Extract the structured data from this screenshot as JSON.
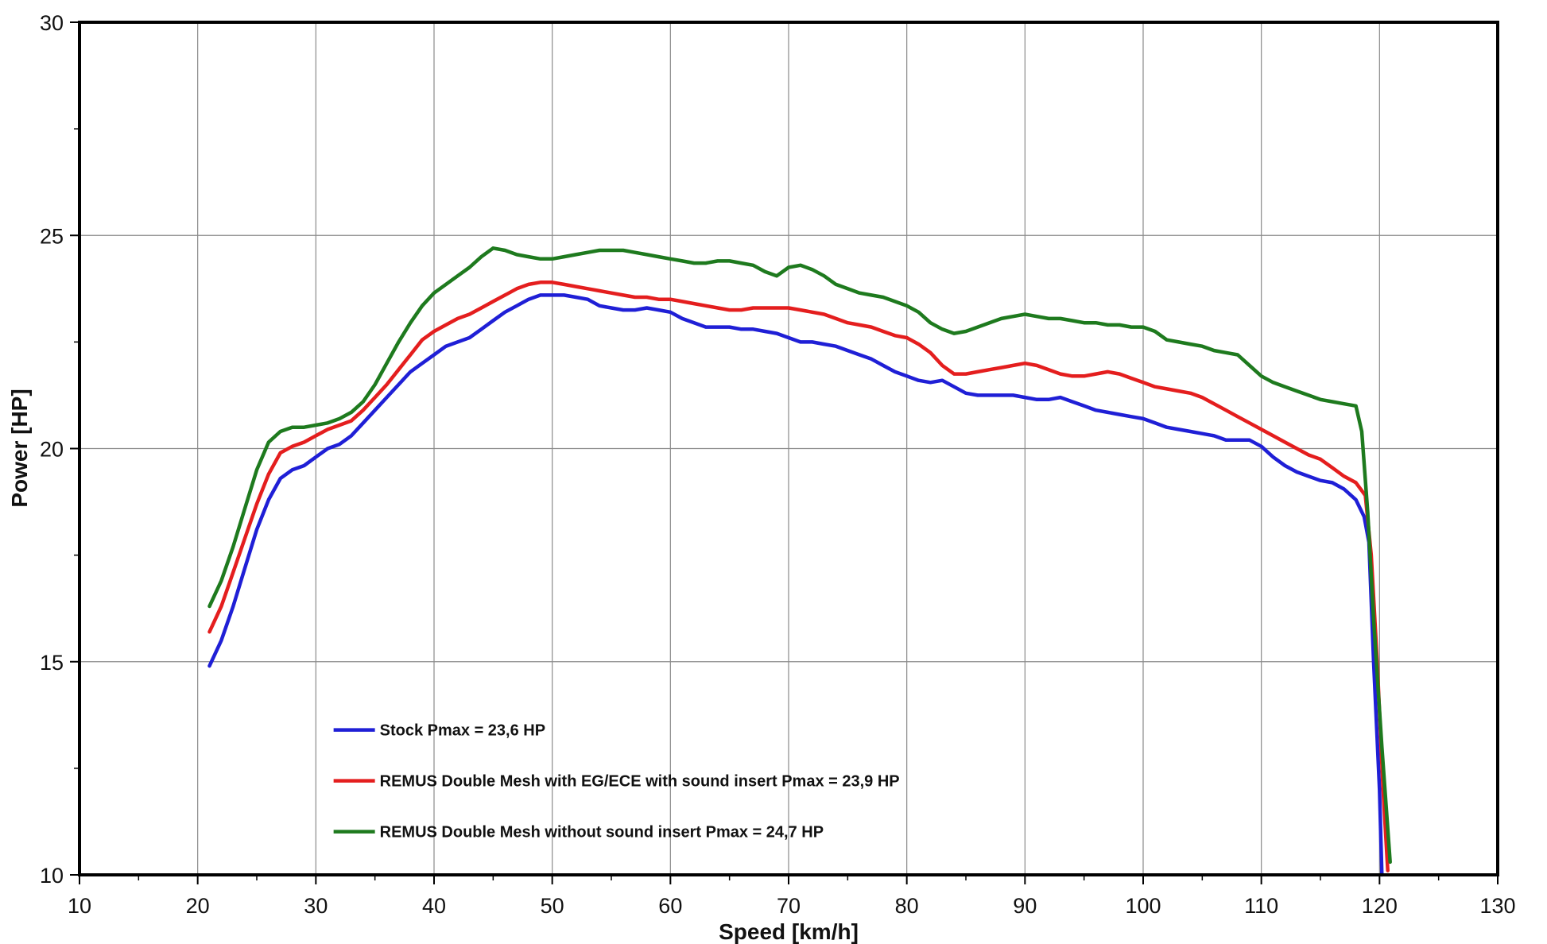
{
  "chart_data": {
    "type": "line",
    "title": "",
    "xlabel": "Speed [km/h]",
    "ylabel": "Power [HP]",
    "xlim": [
      10,
      130
    ],
    "ylim": [
      10,
      30
    ],
    "x_ticks": [
      10,
      20,
      30,
      40,
      50,
      60,
      70,
      80,
      90,
      100,
      110,
      120,
      130
    ],
    "y_ticks": [
      10,
      15,
      20,
      25,
      30
    ],
    "grid": true,
    "legend_position": "lower-center",
    "series": [
      {
        "name": "Stock Pmax = 23,6 HP",
        "color": "#1f1fd6",
        "points": [
          [
            21,
            14.9
          ],
          [
            22,
            15.5
          ],
          [
            23,
            16.3
          ],
          [
            24,
            17.2
          ],
          [
            25,
            18.1
          ],
          [
            26,
            18.8
          ],
          [
            27,
            19.3
          ],
          [
            28,
            19.5
          ],
          [
            29,
            19.6
          ],
          [
            30,
            19.8
          ],
          [
            31,
            20.0
          ],
          [
            32,
            20.1
          ],
          [
            33,
            20.3
          ],
          [
            34,
            20.6
          ],
          [
            35,
            20.9
          ],
          [
            36,
            21.2
          ],
          [
            37,
            21.5
          ],
          [
            38,
            21.8
          ],
          [
            39,
            22.0
          ],
          [
            40,
            22.2
          ],
          [
            41,
            22.4
          ],
          [
            42,
            22.5
          ],
          [
            43,
            22.6
          ],
          [
            44,
            22.8
          ],
          [
            45,
            23.0
          ],
          [
            46,
            23.2
          ],
          [
            47,
            23.35
          ],
          [
            48,
            23.5
          ],
          [
            49,
            23.6
          ],
          [
            50,
            23.6
          ],
          [
            51,
            23.6
          ],
          [
            52,
            23.55
          ],
          [
            53,
            23.5
          ],
          [
            54,
            23.35
          ],
          [
            55,
            23.3
          ],
          [
            56,
            23.25
          ],
          [
            57,
            23.25
          ],
          [
            58,
            23.3
          ],
          [
            59,
            23.25
          ],
          [
            60,
            23.2
          ],
          [
            61,
            23.05
          ],
          [
            62,
            22.95
          ],
          [
            63,
            22.85
          ],
          [
            64,
            22.85
          ],
          [
            65,
            22.85
          ],
          [
            66,
            22.8
          ],
          [
            67,
            22.8
          ],
          [
            68,
            22.75
          ],
          [
            69,
            22.7
          ],
          [
            70,
            22.6
          ],
          [
            71,
            22.5
          ],
          [
            72,
            22.5
          ],
          [
            73,
            22.45
          ],
          [
            74,
            22.4
          ],
          [
            75,
            22.3
          ],
          [
            76,
            22.2
          ],
          [
            77,
            22.1
          ],
          [
            78,
            21.95
          ],
          [
            79,
            21.8
          ],
          [
            80,
            21.7
          ],
          [
            81,
            21.6
          ],
          [
            82,
            21.55
          ],
          [
            83,
            21.6
          ],
          [
            84,
            21.45
          ],
          [
            85,
            21.3
          ],
          [
            86,
            21.25
          ],
          [
            87,
            21.25
          ],
          [
            88,
            21.25
          ],
          [
            89,
            21.25
          ],
          [
            90,
            21.2
          ],
          [
            91,
            21.15
          ],
          [
            92,
            21.15
          ],
          [
            93,
            21.2
          ],
          [
            94,
            21.1
          ],
          [
            95,
            21.0
          ],
          [
            96,
            20.9
          ],
          [
            97,
            20.85
          ],
          [
            98,
            20.8
          ],
          [
            99,
            20.75
          ],
          [
            100,
            20.7
          ],
          [
            101,
            20.6
          ],
          [
            102,
            20.5
          ],
          [
            103,
            20.45
          ],
          [
            104,
            20.4
          ],
          [
            105,
            20.35
          ],
          [
            106,
            20.3
          ],
          [
            107,
            20.2
          ],
          [
            108,
            20.2
          ],
          [
            109,
            20.2
          ],
          [
            110,
            20.05
          ],
          [
            111,
            19.8
          ],
          [
            112,
            19.6
          ],
          [
            113,
            19.45
          ],
          [
            114,
            19.35
          ],
          [
            115,
            19.25
          ],
          [
            116,
            19.2
          ],
          [
            117,
            19.05
          ],
          [
            118,
            18.8
          ],
          [
            118.7,
            18.4
          ],
          [
            119.1,
            17.8
          ],
          [
            119.5,
            15.0
          ],
          [
            120,
            12.0
          ],
          [
            120.2,
            10.0
          ]
        ]
      },
      {
        "name": "REMUS Double Mesh with EG/ECE with sound insert Pmax = 23,9 HP",
        "color": "#e41e1e",
        "points": [
          [
            21,
            15.7
          ],
          [
            22,
            16.3
          ],
          [
            23,
            17.1
          ],
          [
            24,
            17.9
          ],
          [
            25,
            18.7
          ],
          [
            26,
            19.4
          ],
          [
            27,
            19.9
          ],
          [
            28,
            20.05
          ],
          [
            29,
            20.15
          ],
          [
            30,
            20.3
          ],
          [
            31,
            20.45
          ],
          [
            32,
            20.55
          ],
          [
            33,
            20.65
          ],
          [
            34,
            20.9
          ],
          [
            35,
            21.2
          ],
          [
            36,
            21.5
          ],
          [
            37,
            21.85
          ],
          [
            38,
            22.2
          ],
          [
            39,
            22.55
          ],
          [
            40,
            22.75
          ],
          [
            41,
            22.9
          ],
          [
            42,
            23.05
          ],
          [
            43,
            23.15
          ],
          [
            44,
            23.3
          ],
          [
            45,
            23.45
          ],
          [
            46,
            23.6
          ],
          [
            47,
            23.75
          ],
          [
            48,
            23.85
          ],
          [
            49,
            23.9
          ],
          [
            50,
            23.9
          ],
          [
            51,
            23.85
          ],
          [
            52,
            23.8
          ],
          [
            53,
            23.75
          ],
          [
            54,
            23.7
          ],
          [
            55,
            23.65
          ],
          [
            56,
            23.6
          ],
          [
            57,
            23.55
          ],
          [
            58,
            23.55
          ],
          [
            59,
            23.5
          ],
          [
            60,
            23.5
          ],
          [
            61,
            23.45
          ],
          [
            62,
            23.4
          ],
          [
            63,
            23.35
          ],
          [
            64,
            23.3
          ],
          [
            65,
            23.25
          ],
          [
            66,
            23.25
          ],
          [
            67,
            23.3
          ],
          [
            68,
            23.3
          ],
          [
            69,
            23.3
          ],
          [
            70,
            23.3
          ],
          [
            71,
            23.25
          ],
          [
            72,
            23.2
          ],
          [
            73,
            23.15
          ],
          [
            74,
            23.05
          ],
          [
            75,
            22.95
          ],
          [
            76,
            22.9
          ],
          [
            77,
            22.85
          ],
          [
            78,
            22.75
          ],
          [
            79,
            22.65
          ],
          [
            80,
            22.6
          ],
          [
            81,
            22.45
          ],
          [
            82,
            22.25
          ],
          [
            83,
            21.95
          ],
          [
            84,
            21.75
          ],
          [
            85,
            21.75
          ],
          [
            86,
            21.8
          ],
          [
            87,
            21.85
          ],
          [
            88,
            21.9
          ],
          [
            89,
            21.95
          ],
          [
            90,
            22.0
          ],
          [
            91,
            21.95
          ],
          [
            92,
            21.85
          ],
          [
            93,
            21.75
          ],
          [
            94,
            21.7
          ],
          [
            95,
            21.7
          ],
          [
            96,
            21.75
          ],
          [
            97,
            21.8
          ],
          [
            98,
            21.75
          ],
          [
            99,
            21.65
          ],
          [
            100,
            21.55
          ],
          [
            101,
            21.45
          ],
          [
            102,
            21.4
          ],
          [
            103,
            21.35
          ],
          [
            104,
            21.3
          ],
          [
            105,
            21.2
          ],
          [
            106,
            21.05
          ],
          [
            107,
            20.9
          ],
          [
            108,
            20.75
          ],
          [
            109,
            20.6
          ],
          [
            110,
            20.45
          ],
          [
            111,
            20.3
          ],
          [
            112,
            20.15
          ],
          [
            113,
            20.0
          ],
          [
            114,
            19.85
          ],
          [
            115,
            19.75
          ],
          [
            116,
            19.55
          ],
          [
            117,
            19.35
          ],
          [
            118,
            19.2
          ],
          [
            118.8,
            18.9
          ],
          [
            119.3,
            17.5
          ],
          [
            119.8,
            15.0
          ],
          [
            120.3,
            12.0
          ],
          [
            120.7,
            10.1
          ]
        ]
      },
      {
        "name": "REMUS Double Mesh without sound insert Pmax = 24,7 HP",
        "color": "#1e7a1e",
        "points": [
          [
            21,
            16.3
          ],
          [
            22,
            16.9
          ],
          [
            23,
            17.7
          ],
          [
            24,
            18.6
          ],
          [
            25,
            19.5
          ],
          [
            26,
            20.15
          ],
          [
            27,
            20.4
          ],
          [
            28,
            20.5
          ],
          [
            29,
            20.5
          ],
          [
            30,
            20.55
          ],
          [
            31,
            20.6
          ],
          [
            32,
            20.7
          ],
          [
            33,
            20.85
          ],
          [
            34,
            21.1
          ],
          [
            35,
            21.5
          ],
          [
            36,
            22.0
          ],
          [
            37,
            22.5
          ],
          [
            38,
            22.95
          ],
          [
            39,
            23.35
          ],
          [
            40,
            23.65
          ],
          [
            41,
            23.85
          ],
          [
            42,
            24.05
          ],
          [
            43,
            24.25
          ],
          [
            44,
            24.5
          ],
          [
            45,
            24.7
          ],
          [
            46,
            24.65
          ],
          [
            47,
            24.55
          ],
          [
            48,
            24.5
          ],
          [
            49,
            24.45
          ],
          [
            50,
            24.45
          ],
          [
            51,
            24.5
          ],
          [
            52,
            24.55
          ],
          [
            53,
            24.6
          ],
          [
            54,
            24.65
          ],
          [
            55,
            24.65
          ],
          [
            56,
            24.65
          ],
          [
            57,
            24.6
          ],
          [
            58,
            24.55
          ],
          [
            59,
            24.5
          ],
          [
            60,
            24.45
          ],
          [
            61,
            24.4
          ],
          [
            62,
            24.35
          ],
          [
            63,
            24.35
          ],
          [
            64,
            24.4
          ],
          [
            65,
            24.4
          ],
          [
            66,
            24.35
          ],
          [
            67,
            24.3
          ],
          [
            68,
            24.15
          ],
          [
            69,
            24.05
          ],
          [
            70,
            24.25
          ],
          [
            71,
            24.3
          ],
          [
            72,
            24.2
          ],
          [
            73,
            24.05
          ],
          [
            74,
            23.85
          ],
          [
            75,
            23.75
          ],
          [
            76,
            23.65
          ],
          [
            77,
            23.6
          ],
          [
            78,
            23.55
          ],
          [
            79,
            23.45
          ],
          [
            80,
            23.35
          ],
          [
            81,
            23.2
          ],
          [
            82,
            22.95
          ],
          [
            83,
            22.8
          ],
          [
            84,
            22.7
          ],
          [
            85,
            22.75
          ],
          [
            86,
            22.85
          ],
          [
            87,
            22.95
          ],
          [
            88,
            23.05
          ],
          [
            89,
            23.1
          ],
          [
            90,
            23.15
          ],
          [
            91,
            23.1
          ],
          [
            92,
            23.05
          ],
          [
            93,
            23.05
          ],
          [
            94,
            23.0
          ],
          [
            95,
            22.95
          ],
          [
            96,
            22.95
          ],
          [
            97,
            22.9
          ],
          [
            98,
            22.9
          ],
          [
            99,
            22.85
          ],
          [
            100,
            22.85
          ],
          [
            101,
            22.75
          ],
          [
            102,
            22.55
          ],
          [
            103,
            22.5
          ],
          [
            104,
            22.45
          ],
          [
            105,
            22.4
          ],
          [
            106,
            22.3
          ],
          [
            107,
            22.25
          ],
          [
            108,
            22.2
          ],
          [
            109,
            21.95
          ],
          [
            110,
            21.7
          ],
          [
            111,
            21.55
          ],
          [
            112,
            21.45
          ],
          [
            113,
            21.35
          ],
          [
            114,
            21.25
          ],
          [
            115,
            21.15
          ],
          [
            116,
            21.1
          ],
          [
            117,
            21.05
          ],
          [
            118,
            21.0
          ],
          [
            118.5,
            20.4
          ],
          [
            119,
            18.5
          ],
          [
            119.5,
            16.0
          ],
          [
            120.2,
            13.0
          ],
          [
            120.9,
            10.3
          ]
        ]
      }
    ]
  }
}
